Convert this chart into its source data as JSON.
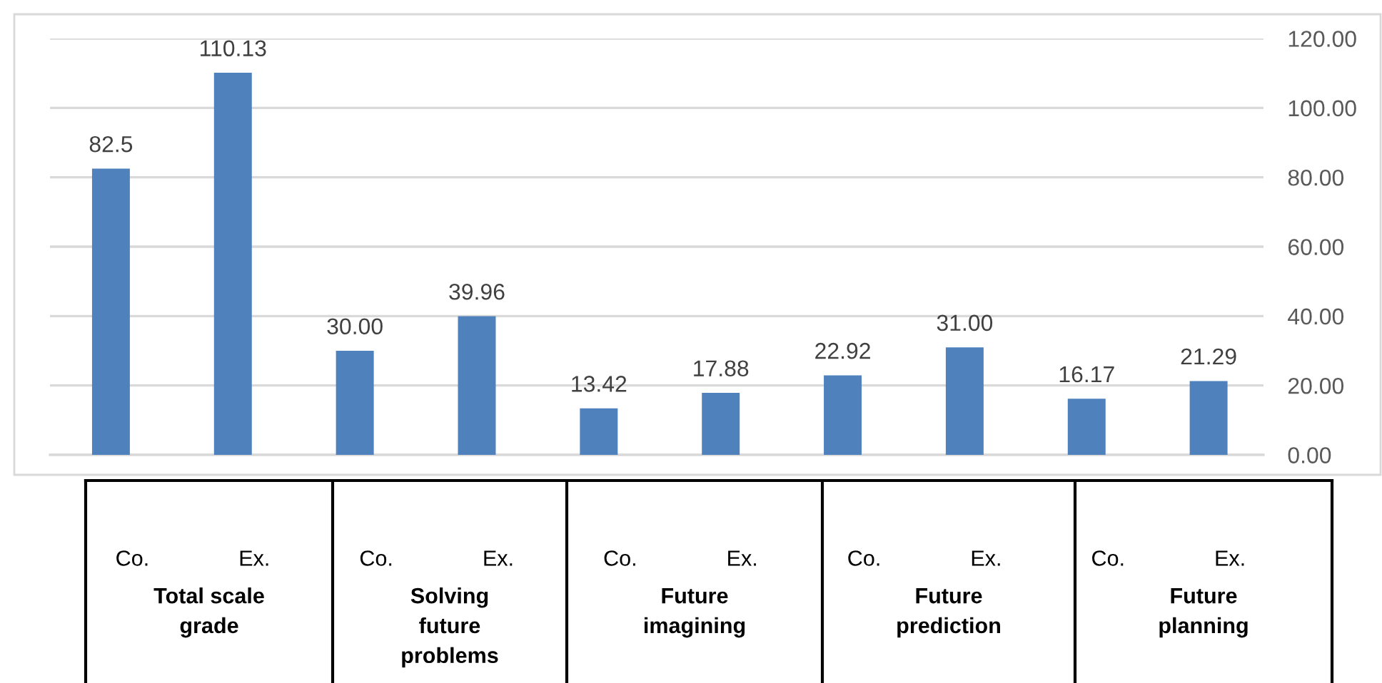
{
  "chart_data": {
    "type": "bar",
    "categories": [
      "Co.",
      "Ex.",
      "Co.",
      "Ex.",
      "Co.",
      "Ex.",
      "Co.",
      "Ex.",
      "Co.",
      "Ex."
    ],
    "values": [
      82.5,
      110.13,
      30.0,
      39.96,
      13.42,
      17.88,
      22.92,
      31.0,
      16.17,
      21.29
    ],
    "value_labels": [
      "82.5",
      "110.13",
      "30.00",
      "39.96",
      "13.42",
      "17.88",
      "22.92",
      "31.00",
      "16.17",
      "21.29"
    ],
    "color": "#4f81bd",
    "ylim": [
      0,
      120
    ],
    "yticks": [
      {
        "value": 0,
        "label": "0.00"
      },
      {
        "value": 20,
        "label": "20.00"
      },
      {
        "value": 40,
        "label": "40.00"
      },
      {
        "value": 60,
        "label": "60.00"
      },
      {
        "value": 80,
        "label": "80.00"
      },
      {
        "value": 100,
        "label": "100.00"
      },
      {
        "value": 120,
        "label": "120.00"
      }
    ],
    "grid": "y",
    "annotations": [
      "Total scale\ngrade",
      "Solving\nfuture\nproblems",
      "Future\nimagining",
      "Future\nprediction",
      "Future\nplanning"
    ]
  }
}
